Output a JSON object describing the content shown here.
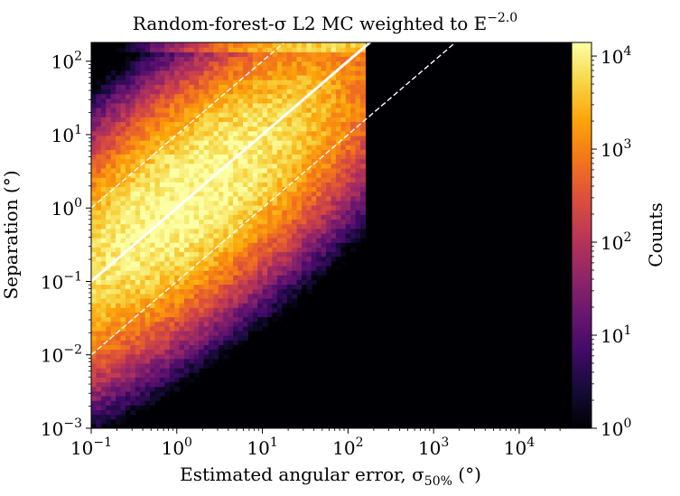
{
  "chart_data": {
    "type": "heatmap",
    "title": "Random-forest-σ L2 MC weighted to E",
    "title_exponent": "−2.0",
    "xlabel_main": "Estimated angular error, σ",
    "xlabel_subscript": "50%",
    "xlabel_unit": " (°)",
    "ylabel": "Separation (°)",
    "colorbar_label": "Counts",
    "x_scale": "log",
    "y_scale": "log",
    "xlim": [
      0.1,
      40000
    ],
    "ylim": [
      0.001,
      180
    ],
    "x_ticks": [
      {
        "value": 0.1,
        "base": "10",
        "exp": "−1"
      },
      {
        "value": 1,
        "base": "10",
        "exp": "0"
      },
      {
        "value": 10,
        "base": "10",
        "exp": "1"
      },
      {
        "value": 100,
        "base": "10",
        "exp": "2"
      },
      {
        "value": 1000,
        "base": "10",
        "exp": "3"
      },
      {
        "value": 10000,
        "base": "10",
        "exp": "4"
      }
    ],
    "y_ticks": [
      {
        "value": 0.001,
        "base": "10",
        "exp": "−3"
      },
      {
        "value": 0.01,
        "base": "10",
        "exp": "−2"
      },
      {
        "value": 0.1,
        "base": "10",
        "exp": "−1"
      },
      {
        "value": 1,
        "base": "10",
        "exp": "0"
      },
      {
        "value": 10,
        "base": "10",
        "exp": "1"
      },
      {
        "value": 100,
        "base": "10",
        "exp": "2"
      }
    ],
    "colorbar": {
      "scale": "log",
      "range": [
        1,
        14000
      ],
      "colormap": "inferno",
      "ticks": [
        {
          "value": 1,
          "base": "10",
          "exp": "0"
        },
        {
          "value": 10,
          "base": "10",
          "exp": "1"
        },
        {
          "value": 100,
          "base": "10",
          "exp": "2"
        },
        {
          "value": 1000,
          "base": "10",
          "exp": "3"
        },
        {
          "value": 10000,
          "base": "10",
          "exp": "4"
        }
      ]
    },
    "reference_lines": [
      {
        "name": "y = x",
        "factor": 1,
        "style": "solid",
        "color": "#ffffff"
      },
      {
        "name": "y = 10x",
        "factor": 10,
        "style": "dashed",
        "color": "#ffffff"
      },
      {
        "name": "y = 0.1x",
        "factor": 0.1,
        "style": "dashed",
        "color": "#ffffff"
      }
    ],
    "density_model": {
      "description": "2D histogram of separation vs estimated error; density peaks along y = x near x ≈ 1, populated only for x ≤ 160",
      "x_cutoff": 160,
      "y_cap": 180,
      "peak_count": 14000,
      "peak_log10x": 0.1,
      "spread_along_diagonal_dex": 1.25,
      "spread_across_diagonal_dex": 0.65,
      "top_row_pileup": true
    }
  }
}
